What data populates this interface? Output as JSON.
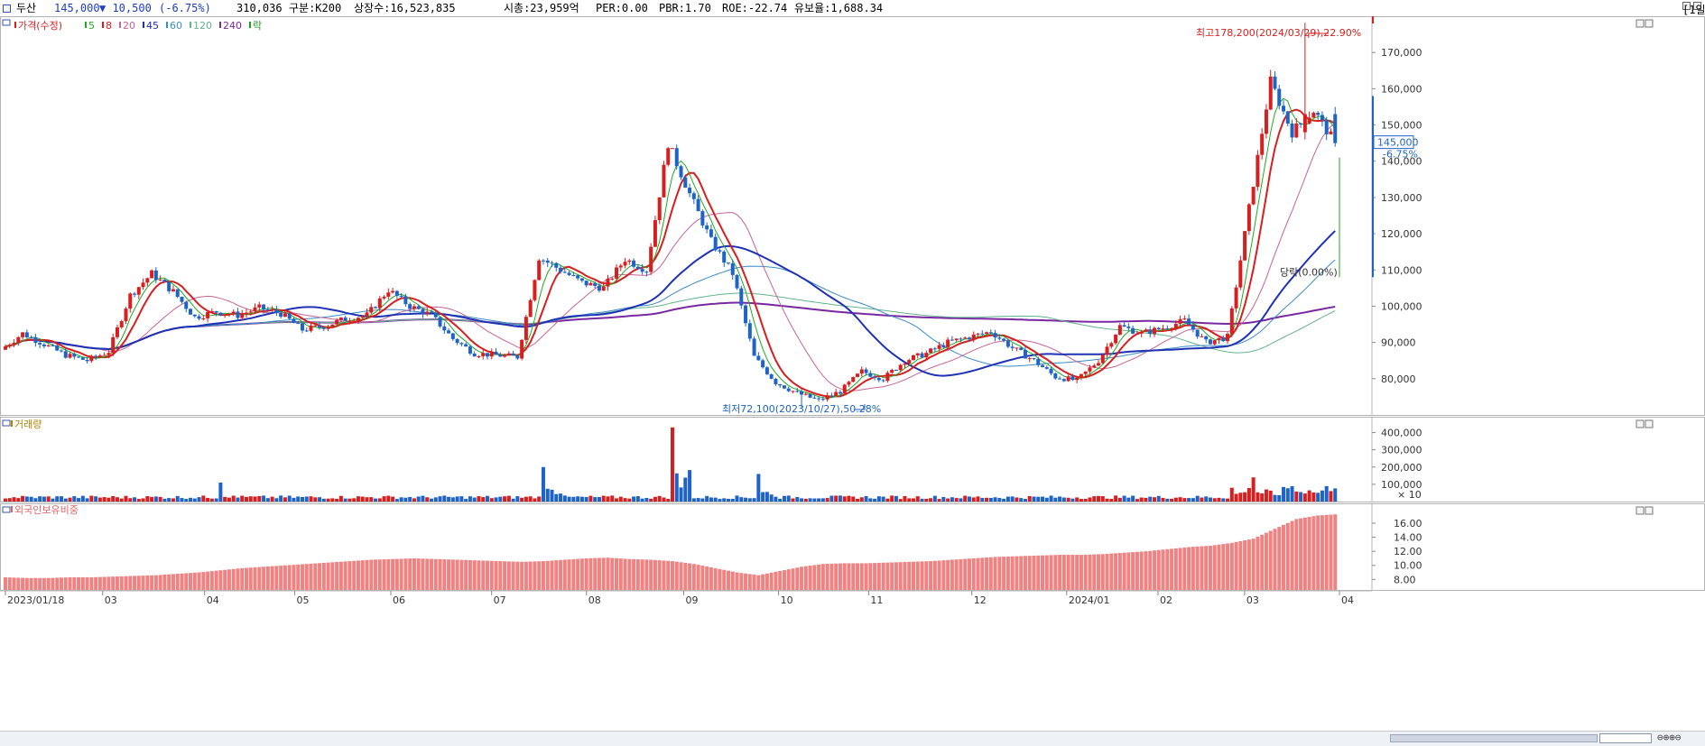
{
  "header": {
    "stock_name": "두산",
    "price": "145,000",
    "change": "▼ 10,500",
    "change_pct": "(-6.75%)",
    "volume": "310,036",
    "market": "구분:K200",
    "listed_shares": "상장수:16,523,835",
    "market_cap": "시총:23,959억",
    "per": "PER:0.00",
    "pbr": "PBR:1.70",
    "roe": "ROE:-22.74",
    "float_ratio": "유보율:1,688.34",
    "period": "[1일]"
  },
  "price_panel": {
    "legend": [
      {
        "label": "가격(수정)",
        "color": "#d81e1e"
      },
      {
        "label": "5",
        "color": "#22aa22"
      },
      {
        "label": "8",
        "color": "#d81e1e"
      },
      {
        "label": "20",
        "color": "#c86496"
      },
      {
        "label": "45",
        "color": "#1e32b4"
      },
      {
        "label": "60",
        "color": "#3c8cc8"
      },
      {
        "label": "120",
        "color": "#64b48c"
      },
      {
        "label": "240",
        "color": "#7828a0"
      },
      {
        "label": "락",
        "color": "#229922"
      }
    ],
    "high_annotation": "최고178,200(2024/03/29),22.90%",
    "low_annotation": "최저72,100(2023/10/27),50.28%",
    "limit_annotation": "당락(0.00%)",
    "current_price_tag": "145,000",
    "current_pct_tag": "-6.75%"
  },
  "volume_panel": {
    "label": "거래량",
    "multiplier": "× 10"
  },
  "foreign_panel": {
    "label": "외국인보유비중"
  },
  "colors": {
    "up": "#d81e1e",
    "down": "#1e64c8",
    "foreign": "#f08282"
  },
  "chart_data": [
    {
      "type": "candlestick",
      "title": "두산",
      "ylabel": "",
      "x_tick_labels": [
        "2023/01/18",
        "03",
        "04",
        "05",
        "06",
        "07",
        "08",
        "09",
        "10",
        "11",
        "12",
        "2024/01",
        "02",
        "03",
        "04"
      ],
      "y_ticks": [
        80000,
        90000,
        100000,
        110000,
        120000,
        130000,
        140000,
        150000,
        160000,
        170000
      ],
      "y_tick_labels": [
        "80,000",
        "90,000",
        "100,000",
        "110,000",
        "120,000",
        "130,000",
        "140,000",
        "150,000",
        "160,000",
        "170,000"
      ],
      "ylim": [
        70000,
        180000
      ],
      "grid": false,
      "weekly_closes_approx": [
        88000,
        92500,
        89500,
        86500,
        85000,
        87500,
        103000,
        109000,
        104000,
        97000,
        98500,
        97500,
        99500,
        98000,
        93500,
        94500,
        96500,
        97500,
        104500,
        100000,
        97500,
        91000,
        87000,
        86500,
        86000,
        113500,
        110000,
        106500,
        105000,
        113000,
        110000,
        145000,
        131000,
        118000,
        109000,
        86000,
        79000,
        76000,
        74000,
        76500,
        82000,
        80000,
        85000,
        87000,
        90000,
        91500,
        93000,
        88500,
        85000,
        80500,
        79500,
        85000,
        94500,
        92500,
        94000,
        96000,
        90000,
        91500,
        127000,
        162000,
        148000,
        154000,
        145000
      ],
      "overlays": [
        {
          "name": "5"
        },
        {
          "name": "8"
        },
        {
          "name": "20"
        },
        {
          "name": "45"
        },
        {
          "name": "60"
        },
        {
          "name": "120"
        },
        {
          "name": "240"
        }
      ]
    },
    {
      "type": "bar",
      "title": "거래량",
      "y_ticks": [
        100000,
        200000,
        300000,
        400000
      ],
      "y_tick_labels": [
        "100,000",
        "200,000",
        "300,000",
        "400,000"
      ],
      "ylim": [
        0,
        450000
      ],
      "spikes_approx": [
        {
          "week": 10,
          "value": 110000
        },
        {
          "week": 25,
          "value": 200000
        },
        {
          "week": 31,
          "value": 430000
        },
        {
          "week": 35,
          "value": 160000
        },
        {
          "week": 57,
          "value": 80000
        },
        {
          "week": 58,
          "value": 140000
        }
      ]
    },
    {
      "type": "bar",
      "title": "외국인보유비중",
      "y_ticks": [
        8,
        10,
        12,
        14,
        16
      ],
      "y_tick_labels": [
        "8.00",
        "10.00",
        "12.00",
        "14.00",
        "16.00"
      ],
      "ylim": [
        6.5,
        17.8
      ],
      "values_by_week_approx": [
        8.3,
        8.2,
        8.2,
        8.3,
        8.3,
        8.4,
        8.5,
        8.6,
        8.8,
        9.0,
        9.3,
        9.6,
        9.8,
        10.0,
        10.2,
        10.4,
        10.6,
        10.8,
        10.9,
        11.0,
        10.9,
        10.8,
        10.7,
        10.6,
        10.5,
        10.6,
        10.8,
        11.0,
        11.1,
        10.9,
        10.8,
        10.6,
        10.2,
        9.6,
        9.0,
        8.6,
        9.2,
        9.8,
        10.2,
        10.3,
        10.3,
        10.4,
        10.5,
        10.6,
        10.8,
        11.0,
        11.2,
        11.3,
        11.4,
        11.5,
        11.5,
        11.6,
        11.8,
        12.0,
        12.3,
        12.6,
        12.8,
        13.2,
        13.8,
        15.2,
        16.6,
        17.1,
        17.3
      ]
    }
  ],
  "x_axis": {
    "ticks": [
      "2023/01/18",
      "03",
      "04",
      "05",
      "06",
      "07",
      "08",
      "09",
      "10",
      "11",
      "12",
      "2024/01",
      "02",
      "03",
      "04"
    ]
  }
}
